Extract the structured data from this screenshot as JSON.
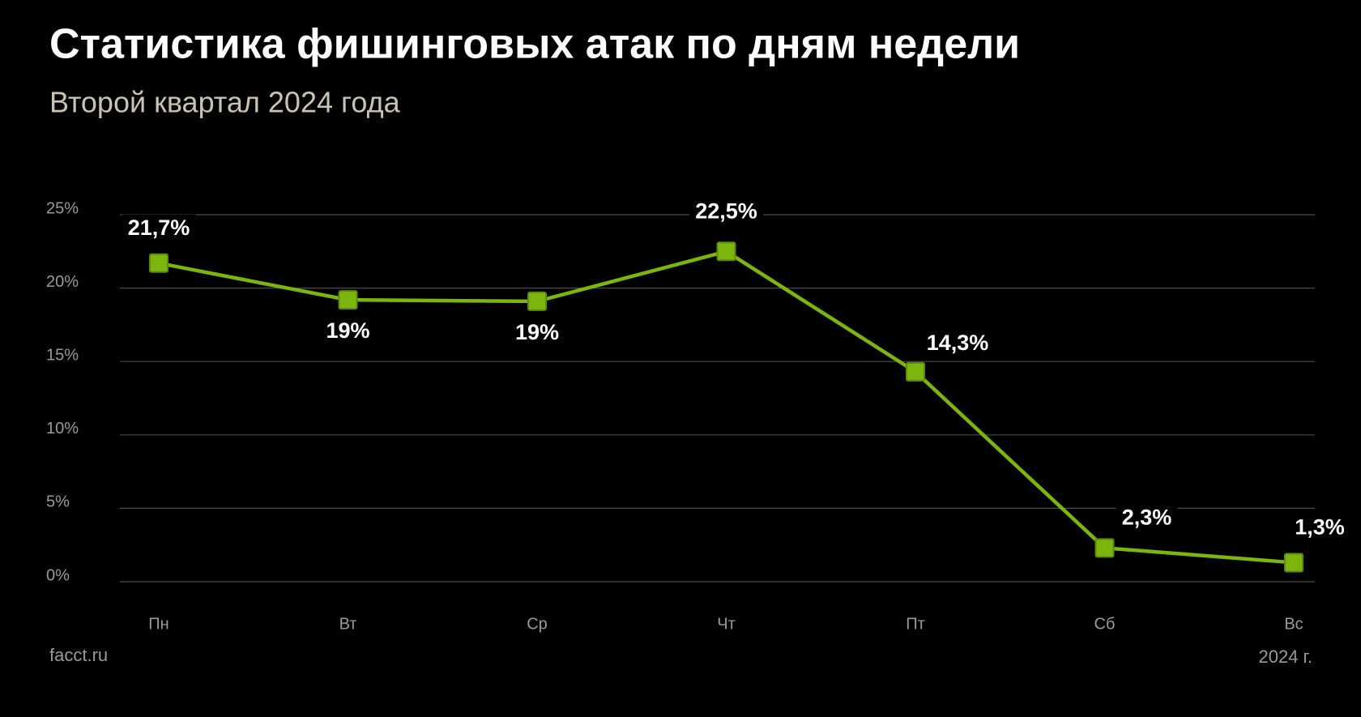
{
  "chart_data": {
    "type": "line",
    "title": "Статистика фишинговых атак по дням недели",
    "subtitle": "Второй квартал 2024 года",
    "categories": [
      "Пн",
      "Вт",
      "Ср",
      "Чт",
      "Пт",
      "Сб",
      "Вс"
    ],
    "series": [
      {
        "color": "#7cb50e",
        "values": [
          21.7,
          19.2,
          19.1,
          22.5,
          14.3,
          2.3,
          1.3
        ],
        "value_labels": [
          "21,7%",
          "19%",
          "19%",
          "22,5%",
          "14,3%",
          "2,3%",
          "1,3%"
        ]
      }
    ],
    "ylim": [
      0,
      25
    ],
    "yticks": [
      {
        "value": 0,
        "label": "0%"
      },
      {
        "value": 5,
        "label": "5%"
      },
      {
        "value": 10,
        "label": "10%"
      },
      {
        "value": 15,
        "label": "15%"
      },
      {
        "value": 20,
        "label": "20%"
      },
      {
        "value": 25,
        "label": "25%"
      }
    ],
    "grid": true,
    "source": "facct.ru",
    "note": "2024 г."
  }
}
